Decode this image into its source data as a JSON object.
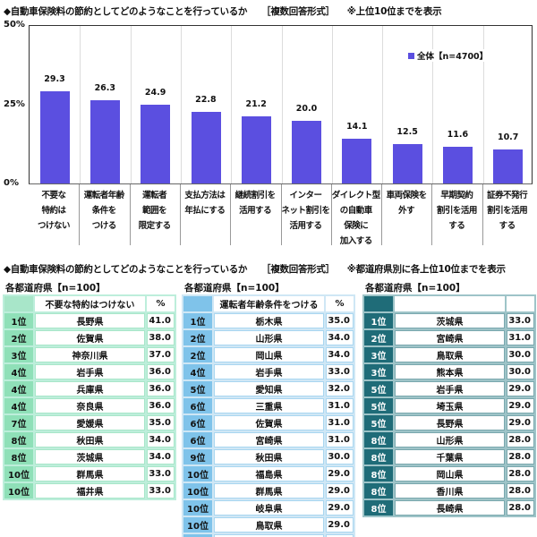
{
  "chart_section": {
    "title": "◆自動車保険料の節約としてどのようなことを行っているか",
    "format": "［複数回答形式］",
    "note": "※上位10位までを表示"
  },
  "chart_data": {
    "type": "bar",
    "title": "自動車保険料の節約としてどのようなことを行っているか",
    "categories": [
      "不要な\n特約は\nつけない",
      "運転者年齢\n条件を\nつける",
      "運転者\n範囲を\n限定する",
      "支払方法は\n年払にする",
      "継続割引を\n活用する",
      "インター\nネット割引を\n活用する",
      "ダイレクト型\nの自動車\n保険に\n加入する",
      "車両保険を\n外す",
      "早期契約\n割引を活用\nする",
      "証券不発行\n割引を活用\nする"
    ],
    "series": [
      {
        "name": "全体【n=4700】",
        "color": "#5b4fe0",
        "values": [
          29.3,
          26.3,
          24.9,
          22.8,
          21.2,
          20.0,
          14.1,
          12.5,
          11.6,
          10.7
        ],
        "labels": [
          "29.3",
          "26.3",
          "24.9",
          "22.8",
          "21.2",
          "20.0",
          "14.1",
          "12.5",
          "11.6",
          "10.7"
        ]
      }
    ],
    "xlabel": "",
    "ylabel": "",
    "ylim": [
      0,
      50
    ],
    "yticks": [
      "0%",
      "25%",
      "50%"
    ],
    "grid": true,
    "legend_position": "top-right"
  },
  "tables_section": {
    "title": "◆自動車保険料の節約としてどのようなことを行っているか",
    "format": "［複数回答形式］",
    "note": "※都道府県別に各上位10位までを表示"
  },
  "tables": [
    {
      "group_title": "各都道府県【n=100】",
      "header": {
        "rank": "",
        "item": "不要な特約はつけない",
        "pct": "%"
      },
      "rows": [
        {
          "rank": "1位",
          "pref": "長野県",
          "pct": "41.0"
        },
        {
          "rank": "2位",
          "pref": "佐賀県",
          "pct": "38.0"
        },
        {
          "rank": "3位",
          "pref": "神奈川県",
          "pct": "37.0"
        },
        {
          "rank": "4位",
          "pref": "岩手県",
          "pct": "36.0"
        },
        {
          "rank": "4位",
          "pref": "兵庫県",
          "pct": "36.0"
        },
        {
          "rank": "4位",
          "pref": "奈良県",
          "pct": "36.0"
        },
        {
          "rank": "7位",
          "pref": "愛媛県",
          "pct": "35.0"
        },
        {
          "rank": "8位",
          "pref": "秋田県",
          "pct": "34.0"
        },
        {
          "rank": "8位",
          "pref": "茨城県",
          "pct": "34.0"
        },
        {
          "rank": "10位",
          "pref": "群馬県",
          "pct": "33.0"
        },
        {
          "rank": "10位",
          "pref": "福井県",
          "pct": "33.0"
        }
      ]
    },
    {
      "group_title": "各都道府県【n=100】",
      "header": {
        "rank": "",
        "item": "運転者年齢条件をつける",
        "pct": "%"
      },
      "rows": [
        {
          "rank": "1位",
          "pref": "栃木県",
          "pct": "35.0"
        },
        {
          "rank": "2位",
          "pref": "山形県",
          "pct": "34.0"
        },
        {
          "rank": "2位",
          "pref": "岡山県",
          "pct": "34.0"
        },
        {
          "rank": "4位",
          "pref": "岩手県",
          "pct": "33.0"
        },
        {
          "rank": "5位",
          "pref": "愛知県",
          "pct": "32.0"
        },
        {
          "rank": "6位",
          "pref": "三重県",
          "pct": "31.0"
        },
        {
          "rank": "6位",
          "pref": "佐賀県",
          "pct": "31.0"
        },
        {
          "rank": "6位",
          "pref": "宮崎県",
          "pct": "31.0"
        },
        {
          "rank": "9位",
          "pref": "秋田県",
          "pct": "30.0"
        },
        {
          "rank": "10位",
          "pref": "福島県",
          "pct": "29.0"
        },
        {
          "rank": "10位",
          "pref": "群馬県",
          "pct": "29.0"
        },
        {
          "rank": "10位",
          "pref": "岐阜県",
          "pct": "29.0"
        },
        {
          "rank": "10位",
          "pref": "鳥取県",
          "pct": "29.0"
        },
        {
          "rank": "10位",
          "pref": "香川県",
          "pct": "29.0"
        }
      ]
    },
    {
      "group_title": "各都道府県【n=100】",
      "header": {
        "rank": "",
        "item": "運転者範囲を限定する",
        "pct": "%"
      },
      "rows": [
        {
          "rank": "1位",
          "pref": "茨城県",
          "pct": "33.0"
        },
        {
          "rank": "2位",
          "pref": "宮崎県",
          "pct": "31.0"
        },
        {
          "rank": "3位",
          "pref": "鳥取県",
          "pct": "30.0"
        },
        {
          "rank": "3位",
          "pref": "熊本県",
          "pct": "30.0"
        },
        {
          "rank": "5位",
          "pref": "岩手県",
          "pct": "29.0"
        },
        {
          "rank": "5位",
          "pref": "埼玉県",
          "pct": "29.0"
        },
        {
          "rank": "5位",
          "pref": "長野県",
          "pct": "29.0"
        },
        {
          "rank": "8位",
          "pref": "山形県",
          "pct": "28.0"
        },
        {
          "rank": "8位",
          "pref": "千葉県",
          "pct": "28.0"
        },
        {
          "rank": "8位",
          "pref": "岡山県",
          "pct": "28.0"
        },
        {
          "rank": "8位",
          "pref": "香川県",
          "pct": "28.0"
        },
        {
          "rank": "8位",
          "pref": "長崎県",
          "pct": "28.0"
        }
      ]
    }
  ]
}
